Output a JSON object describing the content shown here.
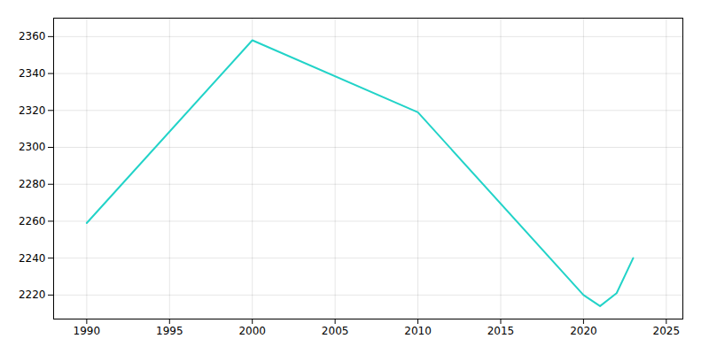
{
  "chart_data": {
    "type": "line",
    "x": [
      1990,
      2000,
      2010,
      2020,
      2021,
      2022,
      2023
    ],
    "values": [
      2259,
      2358,
      2319,
      2220,
      2214,
      2221,
      2240
    ],
    "color": "#22d3c8",
    "xlim": [
      1988,
      2026
    ],
    "ylim": [
      2207,
      2370
    ],
    "xticks": [
      1990,
      1995,
      2000,
      2005,
      2010,
      2015,
      2020,
      2025
    ],
    "yticks": [
      2220,
      2240,
      2260,
      2280,
      2300,
      2320,
      2340,
      2360
    ],
    "grid": true
  }
}
